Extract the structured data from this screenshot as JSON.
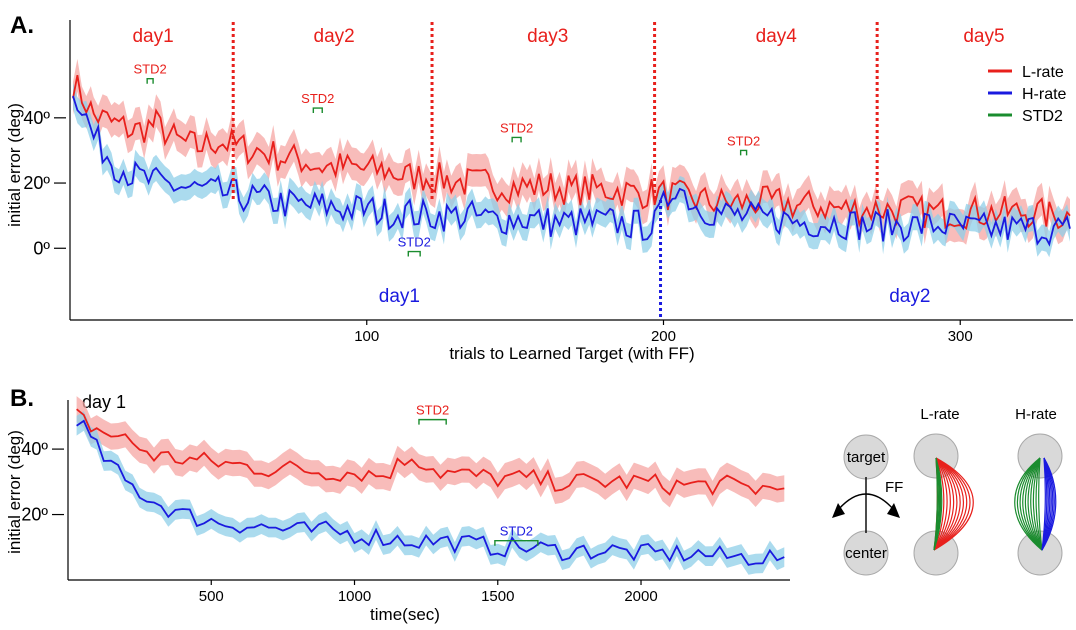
{
  "colors": {
    "l_rate": "#e8201c",
    "h_rate": "#1a1adf",
    "std2": "#1a8c2e",
    "l_band": "#f6a5a3",
    "h_band": "#8fcfe8"
  },
  "chart_data": [
    {
      "panel": "A.",
      "type": "line",
      "xlabel": "trials to Learned Target (with FF)",
      "ylabel": "initial error (deg)",
      "xticks": [
        "100",
        "200",
        "300"
      ],
      "xtick_values": [
        100,
        200,
        300
      ],
      "yticks": [
        "40º",
        "20º",
        "0º"
      ],
      "ytick_values": [
        40,
        20,
        0
      ],
      "xlim": [
        0,
        338
      ],
      "ylim": [
        -22,
        70
      ],
      "legend": {
        "position": "top-right",
        "entries": [
          "L-rate",
          "H-rate",
          "STD2"
        ]
      },
      "l_rate_days": [
        {
          "label": "day1",
          "x_center": 28
        },
        {
          "label": "day2",
          "x_center": 89
        },
        {
          "label": "day3",
          "x_center": 161
        },
        {
          "label": "day4",
          "x_center": 238
        },
        {
          "label": "day5",
          "x_center": 308
        }
      ],
      "l_rate_day_boundaries": [
        55,
        122,
        197,
        272
      ],
      "h_rate_days": [
        {
          "label": "day1",
          "x_center": 111
        },
        {
          "label": "day2",
          "x_center": 283
        }
      ],
      "h_rate_day_boundaries": [
        199
      ],
      "std2_marks": [
        {
          "series": "L-rate",
          "label": "STD2",
          "x": [
            26,
            28
          ],
          "y": 52
        },
        {
          "series": "L-rate",
          "label": "STD2",
          "x": [
            82,
            85
          ],
          "y": 43
        },
        {
          "series": "L-rate",
          "label": "STD2",
          "x": [
            149,
            152
          ],
          "y": 34
        },
        {
          "series": "L-rate",
          "label": "STD2",
          "x": [
            226,
            228
          ],
          "y": 30
        },
        {
          "series": "H-rate",
          "label": "STD2",
          "x": [
            114,
            118
          ],
          "y": -1
        }
      ],
      "series": [
        {
          "name": "L-rate",
          "x": [
            1,
            8,
            15,
            22,
            29,
            36,
            43,
            50,
            57,
            64,
            71,
            78,
            85,
            92,
            99,
            106,
            113,
            120,
            127,
            134,
            141,
            148,
            155,
            162,
            169,
            176,
            183,
            190,
            197,
            204,
            211,
            218,
            225,
            232,
            239,
            246,
            253,
            260,
            267,
            274,
            281,
            288,
            295,
            302,
            309,
            316,
            323,
            330,
            337
          ],
          "y": [
            51,
            41,
            38,
            36,
            38,
            33,
            31,
            33,
            31,
            30,
            28,
            27,
            25,
            25,
            24,
            24,
            22,
            22,
            21,
            20,
            20,
            19,
            19,
            19,
            18,
            18,
            18,
            17,
            17,
            16,
            15,
            14,
            14,
            14,
            14,
            13,
            13,
            12,
            12,
            12,
            12,
            11,
            11,
            11,
            11,
            11,
            11,
            10,
            10
          ],
          "band": 5
        },
        {
          "name": "H-rate",
          "x": [
            1,
            8,
            15,
            22,
            29,
            36,
            43,
            50,
            57,
            64,
            71,
            78,
            85,
            92,
            99,
            106,
            113,
            120,
            127,
            134,
            141,
            148,
            155,
            162,
            169,
            176,
            183,
            190,
            197,
            204,
            211,
            218,
            225,
            232,
            239,
            246,
            253,
            260,
            267,
            274,
            281,
            288,
            295,
            302,
            309,
            316,
            323,
            330,
            337
          ],
          "y": [
            50,
            34,
            26,
            22,
            20,
            19,
            18,
            17,
            16,
            15,
            14,
            13,
            13,
            12,
            12,
            11,
            11,
            10,
            10,
            10,
            9,
            9,
            9,
            8,
            8,
            8,
            8,
            7,
            7,
            20,
            13,
            11,
            10,
            9,
            9,
            8,
            8,
            8,
            7,
            7,
            7,
            7,
            7,
            6,
            6,
            6,
            6,
            6,
            6
          ],
          "band": 4
        }
      ]
    },
    {
      "panel": "B.",
      "type": "line",
      "title": "day 1",
      "xlabel": "time(sec)",
      "ylabel": "initial error (deg)",
      "xticks": [
        "500",
        "1000",
        "1500",
        "2000"
      ],
      "xtick_values": [
        500,
        1000,
        1500,
        2000
      ],
      "yticks": [
        "40º",
        "20º"
      ],
      "ytick_values": [
        40,
        20
      ],
      "xlim": [
        0,
        2520
      ],
      "ylim": [
        0,
        55
      ],
      "std2_marks": [
        {
          "series": "L-rate",
          "label": "STD2",
          "x": [
            1225,
            1320
          ],
          "y": 49
        },
        {
          "series": "H-rate",
          "label": "STD2",
          "x": [
            1490,
            1640
          ],
          "y": 12
        }
      ],
      "series": [
        {
          "name": "L-rate",
          "x": [
            30,
            100,
            200,
            300,
            400,
            500,
            600,
            700,
            800,
            900,
            1000,
            1100,
            1200,
            1300,
            1400,
            1500,
            1600,
            1700,
            1800,
            1900,
            2000,
            2100,
            2200,
            2300,
            2400,
            2500
          ],
          "y": [
            50,
            46,
            43,
            38,
            37,
            36,
            35,
            34,
            34,
            33,
            33,
            32,
            38,
            33,
            32,
            31,
            31,
            30,
            30,
            30,
            30,
            29,
            29,
            29,
            28,
            28
          ],
          "band": 4
        },
        {
          "name": "H-rate",
          "x": [
            30,
            100,
            200,
            300,
            400,
            500,
            600,
            700,
            800,
            900,
            1000,
            1100,
            1200,
            1300,
            1400,
            1500,
            1600,
            1700,
            1800,
            1900,
            2000,
            2100,
            2200,
            2300,
            2400,
            2500
          ],
          "y": [
            50,
            40,
            30,
            24,
            20,
            18,
            17,
            16,
            15,
            15,
            14,
            13,
            12,
            12,
            11,
            10,
            10,
            9,
            9,
            9,
            8,
            8,
            8,
            7,
            7,
            7
          ],
          "band": 3
        }
      ]
    }
  ],
  "diagram": {
    "target_label": "target",
    "center_label": "center",
    "ff_label": "FF",
    "l_rate_label": "L-rate",
    "h_rate_label": "H-rate"
  }
}
